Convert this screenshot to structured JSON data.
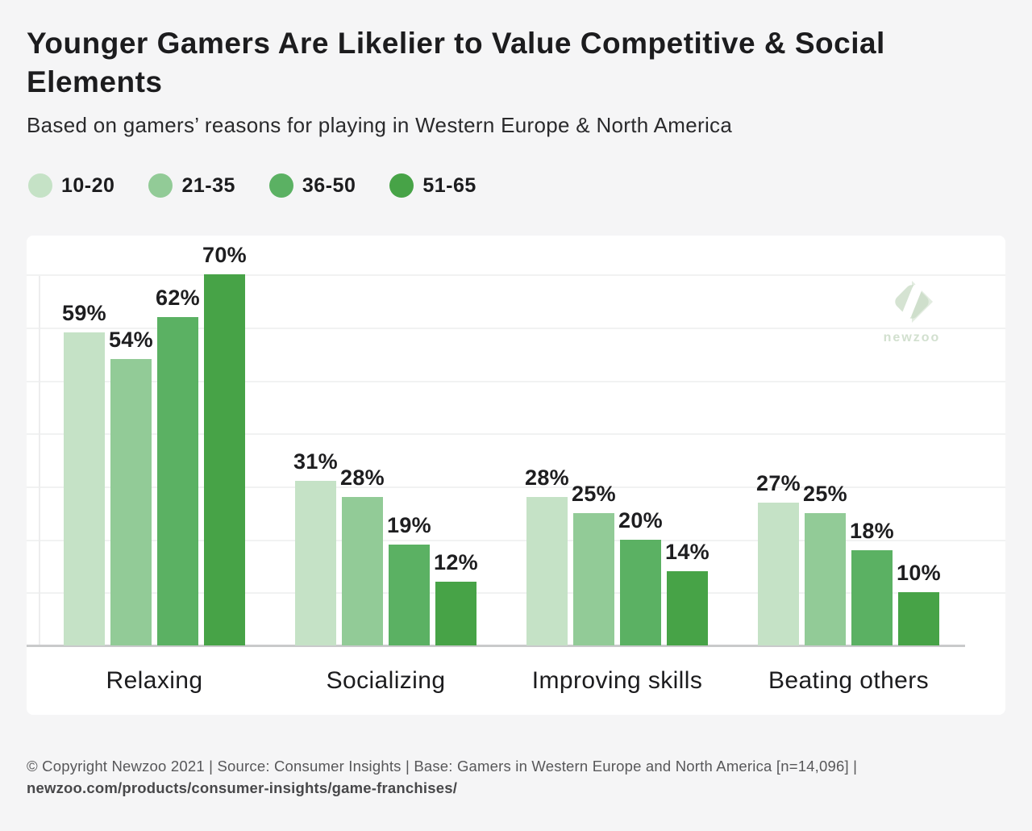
{
  "header": {
    "title": "Younger Gamers Are Likelier to Value Competitive & Social Elements",
    "subtitle": "Based on gamers’ reasons for playing in Western Europe & North America"
  },
  "legend": {
    "items": [
      {
        "label": "10-20",
        "color": "#c5e2c6"
      },
      {
        "label": "21-35",
        "color": "#92cb97"
      },
      {
        "label": "36-50",
        "color": "#5bb163"
      },
      {
        "label": "51-65",
        "color": "#47a347"
      }
    ]
  },
  "chart_data": {
    "type": "bar",
    "categories": [
      "Relaxing",
      "Socializing",
      "Improving skills",
      "Beating others"
    ],
    "series": [
      {
        "name": "10-20",
        "color": "#c5e2c6",
        "values": [
          59,
          31,
          28,
          27
        ]
      },
      {
        "name": "21-35",
        "color": "#92cb97",
        "values": [
          54,
          28,
          25,
          25
        ]
      },
      {
        "name": "36-50",
        "color": "#5bb163",
        "values": [
          62,
          19,
          20,
          18
        ]
      },
      {
        "name": "51-65",
        "color": "#47a347",
        "values": [
          70,
          12,
          14,
          10
        ]
      }
    ],
    "value_suffix": "%",
    "ylim": [
      0,
      77
    ],
    "gridline_interval": 10,
    "grid": true,
    "legend_position": "top",
    "title": "Younger Gamers Are Likelier to Value Competitive & Social Elements",
    "xlabel": "",
    "ylabel": ""
  },
  "watermark": {
    "text": "newzoo"
  },
  "footer": {
    "line1": "© Copyright Newzoo 2021 | Source: Consumer Insights | Base: Gamers in Western Europe and North America [n=14,096] |",
    "line2": "newzoo.com/products/consumer-insights/game-franchises/"
  }
}
